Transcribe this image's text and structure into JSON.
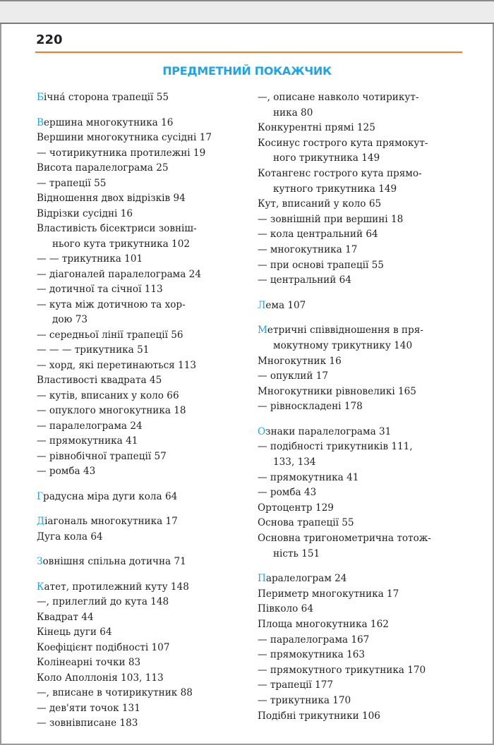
{
  "page_number": "220",
  "title": "ПРЕДМЕТНИЙ ПОКАЖЧИК",
  "colors": {
    "accent": "#1ca5ea",
    "rule": "#f47a20"
  },
  "columns": [
    [
      [
        [
          "Бічна́ сторона трапеції  55"
        ]
      ],
      [
        [
          "Вершина многокутника  16"
        ],
        [
          "Вершини многокутника сусідні  17"
        ],
        [
          "— чотирикутника протилежні  19"
        ],
        [
          "Висота паралелограма  25"
        ],
        [
          "— трапеції  55"
        ],
        [
          "Відношення двох відрізків  94"
        ],
        [
          "Відрізки сусідні  16"
        ],
        [
          "Властивість бісектриси зовніш-",
          "нього кута трикутника  102"
        ],
        [
          "— — трикутника  101"
        ],
        [
          "— діагоналей паралелограма  24"
        ],
        [
          "— дотичної та січної  113"
        ],
        [
          "—  кута між дотичною та хор-",
          "дою 73"
        ],
        [
          "— середньої лінії трапеції  56"
        ],
        [
          "— — — трикутника  51"
        ],
        [
          "— хорд, які перетинаються  113"
        ],
        [
          "Властивості квадрата  45"
        ],
        [
          "— кутів, вписаних у коло  66"
        ],
        [
          "— опуклого многокутника  18"
        ],
        [
          "— паралелограма  24"
        ],
        [
          "— прямокутника  41"
        ],
        [
          "— рівнобічної трапеції  57"
        ],
        [
          "— ромба  43"
        ]
      ],
      [
        [
          "Градусна міра дуги кола  64"
        ]
      ],
      [
        [
          "Діагональ многокутника  17"
        ],
        [
          "Дуга кола  64"
        ]
      ],
      [
        [
          "Зовнішня спільна дотична  71"
        ]
      ],
      [
        [
          "Катет, протилежний куту  148"
        ],
        [
          "—, прилеглий до кута  148"
        ],
        [
          "Квадрат  44"
        ],
        [
          "Кінець дуги  64"
        ],
        [
          "Коефіцієнт подібності  107"
        ],
        [
          "Колінеарні точки  83"
        ],
        [
          "Коло Аполлонія  103,  113"
        ],
        [
          "—, вписане в чотирикутник  88"
        ],
        [
          "— дев'яти точок  131"
        ],
        [
          "— зовнівписане  183"
        ]
      ]
    ],
    [
      [
        [
          "—, описане навколо чотирикут-",
          "ника  80"
        ],
        [
          "Конкурентні прямі  125"
        ],
        [
          "Косинус гострого кута прямокут-",
          "ного трикутника  149"
        ],
        [
          "Котангенс гострого кута прямо-",
          "кутного трикутника  149"
        ],
        [
          "Кут, вписаний у коло  65"
        ],
        [
          "— зовнішній при вершині  18"
        ],
        [
          "— кола центральний  64"
        ],
        [
          "— многокутника  17"
        ],
        [
          "— при основі трапеції  55"
        ],
        [
          "— центральний  64"
        ]
      ],
      [
        [
          "Лема  107"
        ]
      ],
      [
        [
          "Метричні співвідношення в пря-",
          "мокутному трикутнику  140"
        ],
        [
          "Многокутник  16"
        ],
        [
          "— опуклий  17"
        ],
        [
          "Многокутники рівновеликі  165"
        ],
        [
          "— рівноскладені  178"
        ]
      ],
      [
        [
          "Ознаки паралелограма  31"
        ],
        [
          "— подібності трикутників  111,",
          "133, 134"
        ],
        [
          "— прямокутника  41"
        ],
        [
          "— ромба  43"
        ],
        [
          "Ортоцентр  129"
        ],
        [
          "Основа трапеції  55"
        ],
        [
          "Основна тригонометрична тотож-",
          "ність  151"
        ]
      ],
      [
        [
          "Паралелограм  24"
        ],
        [
          "Периметр многокутника  17"
        ],
        [
          "Півколо  64"
        ],
        [
          "Площа многокутника  162"
        ],
        [
          "— паралелограма  167"
        ],
        [
          "— прямокутника  163"
        ],
        [
          "— прямокутного трикутника  170"
        ],
        [
          "— трапеції  177"
        ],
        [
          "— трикутника  170"
        ],
        [
          "Подібні трикутники  106"
        ]
      ]
    ]
  ]
}
